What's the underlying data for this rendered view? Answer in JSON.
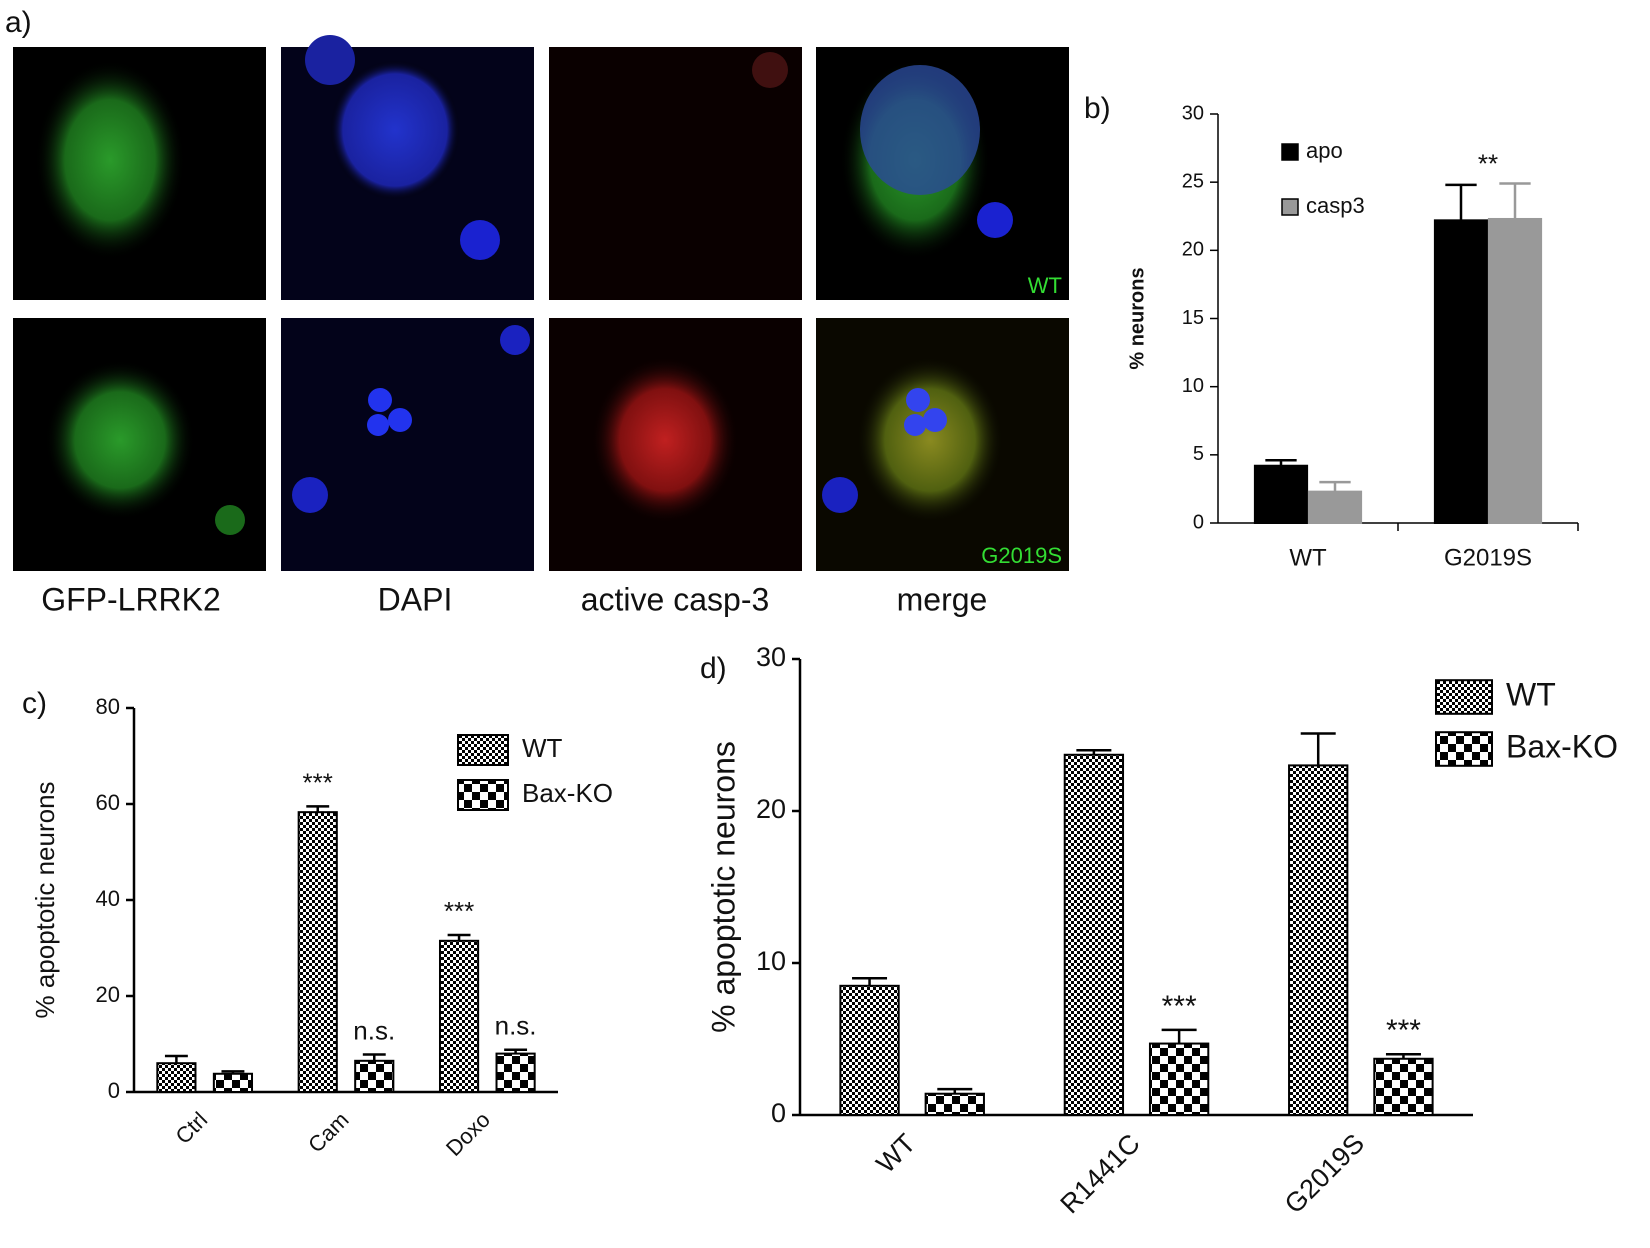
{
  "panel_a": {
    "label": "a)",
    "columns": [
      "GFP-LRRK2",
      "DAPI",
      "active casp-3",
      "merge"
    ],
    "row_labels": [
      "WT",
      "G2019S"
    ]
  },
  "chart_data": [
    {
      "type": "bar",
      "label": "b)",
      "ylabel": "% neurons",
      "categories": [
        "WT",
        "G2019S"
      ],
      "series": [
        {
          "name": "apo",
          "color": "#000000",
          "values": [
            4.2,
            22.2
          ],
          "errors": [
            0.4,
            2.6
          ]
        },
        {
          "name": "casp3",
          "color": "#999999",
          "values": [
            2.3,
            22.3
          ],
          "errors": [
            0.7,
            2.6
          ]
        }
      ],
      "category_annotations": [
        null,
        "**"
      ],
      "ylim": [
        0,
        30
      ],
      "yticks": [
        0,
        5,
        10,
        15,
        20,
        25,
        30
      ]
    },
    {
      "type": "bar",
      "label": "c)",
      "ylabel": "% apoptotic neurons",
      "categories": [
        "Ctrl",
        "Cam",
        "Doxo"
      ],
      "series": [
        {
          "name": "WT",
          "color": "#000000",
          "pattern": "fine",
          "values": [
            6,
            58.3,
            31.5
          ],
          "errors": [
            1.5,
            1.2,
            1.2
          ],
          "annotations": [
            null,
            "***",
            "***"
          ]
        },
        {
          "name": "Bax-KO",
          "color": "#000000",
          "pattern": "coarse",
          "values": [
            3.8,
            6.5,
            8.0
          ],
          "errors": [
            0.5,
            1.3,
            0.8
          ],
          "annotations": [
            null,
            "n.s.",
            "n.s."
          ]
        }
      ],
      "ylim": [
        0,
        80
      ],
      "yticks": [
        0,
        20,
        40,
        60,
        80
      ]
    },
    {
      "type": "bar",
      "label": "d)",
      "ylabel": "% apoptotic neurons",
      "categories": [
        "WT",
        "R1441C",
        "G2019S"
      ],
      "series": [
        {
          "name": "WT",
          "color": "#000000",
          "pattern": "fine",
          "values": [
            8.5,
            23.7,
            23.0
          ],
          "errors": [
            0.5,
            0.3,
            2.1
          ]
        },
        {
          "name": "Bax-KO",
          "color": "#000000",
          "pattern": "coarse",
          "values": [
            1.4,
            4.7,
            3.7
          ],
          "errors": [
            0.3,
            0.9,
            0.3
          ],
          "annotations": [
            null,
            "***",
            "***"
          ]
        }
      ],
      "ylim": [
        0,
        30
      ],
      "yticks": [
        0,
        10,
        20,
        30
      ]
    }
  ]
}
